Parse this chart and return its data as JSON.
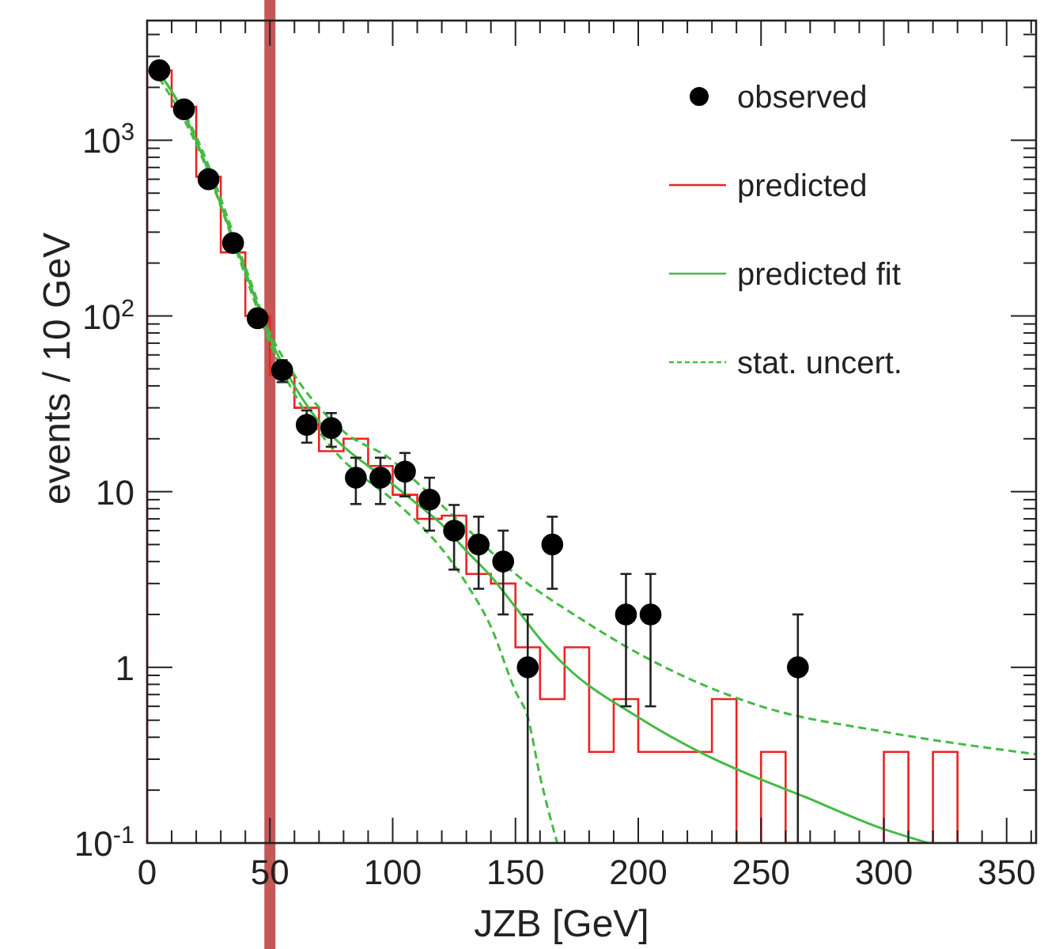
{
  "chart_data": {
    "type": "scatter",
    "xlabel": "JZB [GeV]",
    "ylabel": "events / 10 GeV",
    "xlim": [
      0,
      362
    ],
    "ylim": [
      0.1,
      4800
    ],
    "log": true,
    "grid": false,
    "legend": "top right",
    "xticks": [
      0,
      {
        "value": 10,
        "label": null
      },
      {
        "value": 20,
        "label": null
      },
      {
        "value": 30,
        "label": null
      },
      {
        "value": 40,
        "label": null
      },
      50,
      {
        "value": 60,
        "label": null
      },
      {
        "value": 70,
        "label": null
      },
      {
        "value": 80,
        "label": null
      },
      {
        "value": 90,
        "label": null
      },
      100,
      {
        "value": 110,
        "label": null
      },
      {
        "value": 120,
        "label": null
      },
      {
        "value": 130,
        "label": null
      },
      {
        "value": 140,
        "label": null
      },
      150,
      {
        "value": 160,
        "label": null
      },
      {
        "value": 170,
        "label": null
      },
      {
        "value": 180,
        "label": null
      },
      {
        "value": 190,
        "label": null
      },
      200,
      {
        "value": 210,
        "label": null
      },
      {
        "value": 220,
        "label": null
      },
      {
        "value": 230,
        "label": null
      },
      {
        "value": 240,
        "label": null
      },
      250,
      {
        "value": 260,
        "label": null
      },
      {
        "value": 270,
        "label": null
      },
      {
        "value": 280,
        "label": null
      },
      {
        "value": 290,
        "label": null
      },
      300,
      {
        "value": 310,
        "label": null
      },
      {
        "value": 320,
        "label": null
      },
      {
        "value": 330,
        "label": null
      },
      {
        "value": 340,
        "label": null
      },
      350,
      {
        "value": 360,
        "label": null
      }
    ],
    "yticks": [
      {
        "value": 0.1,
        "label": "10$^{-1}$"
      },
      {
        "value": 0.2,
        "label": null
      },
      {
        "value": 0.3,
        "label": null
      },
      {
        "value": 0.4,
        "label": null
      },
      {
        "value": 0.5,
        "label": null
      },
      {
        "value": 0.6,
        "label": null
      },
      {
        "value": 0.7,
        "label": null
      },
      {
        "value": 0.8,
        "label": null
      },
      {
        "value": 0.9,
        "label": null
      },
      1,
      {
        "value": 2,
        "label": null
      },
      {
        "value": 3,
        "label": null
      },
      {
        "value": 4,
        "label": null
      },
      {
        "value": 5,
        "label": null
      },
      {
        "value": 6,
        "label": null
      },
      {
        "value": 7,
        "label": null
      },
      {
        "value": 8,
        "label": null
      },
      {
        "value": 9,
        "label": null
      },
      10,
      {
        "value": 20,
        "label": null
      },
      {
        "value": 30,
        "label": null
      },
      {
        "value": 40,
        "label": null
      },
      {
        "value": 50,
        "label": null
      },
      {
        "value": 60,
        "label": null
      },
      {
        "value": 70,
        "label": null
      },
      {
        "value": 80,
        "label": null
      },
      {
        "value": 90,
        "label": null
      },
      {
        "value": 100,
        "label": "10$^{2}$"
      },
      {
        "value": 200,
        "label": null
      },
      {
        "value": 300,
        "label": null
      },
      {
        "value": 400,
        "label": null
      },
      {
        "value": 500,
        "label": null
      },
      {
        "value": 600,
        "label": null
      },
      {
        "value": 700,
        "label": null
      },
      {
        "value": 800,
        "label": null
      },
      {
        "value": 900,
        "label": null
      },
      {
        "value": 1000,
        "label": "10$^{3}$"
      },
      {
        "value": 2000,
        "label": null
      },
      {
        "value": 3000,
        "label": null
      },
      {
        "value": 4000,
        "label": null
      }
    ],
    "ref_lines": [
      {
        "axis": "x",
        "value": 50,
        "color": "#c0504d"
      }
    ],
    "series": [
      {
        "name": "observed",
        "type": "scatter",
        "color": "#000000",
        "marker": "circle",
        "x": [
          5,
          15,
          25,
          35,
          45,
          55,
          65,
          75,
          85,
          95,
          105,
          115,
          125,
          135,
          145,
          155,
          165,
          195,
          205,
          265
        ],
        "values": [
          2500,
          1500,
          600,
          260,
          97,
          49,
          24,
          23,
          12,
          12,
          13,
          9,
          6,
          5,
          4,
          1,
          5,
          2,
          2,
          1
        ],
        "errors": [
          null,
          null,
          null,
          null,
          null,
          [
            42,
            56
          ],
          [
            19,
            29
          ],
          [
            18,
            28
          ],
          [
            8.5,
            15.6
          ],
          [
            8.5,
            15.6
          ],
          [
            9.4,
            16.6
          ],
          [
            6,
            12
          ],
          [
            3.6,
            8.4
          ],
          [
            2.8,
            7.2
          ],
          [
            2,
            6
          ],
          [
            0.1,
            2
          ],
          [
            2.8,
            7.2
          ],
          [
            0.6,
            3.4
          ],
          [
            0.6,
            3.4
          ],
          [
            0.1,
            2
          ]
        ]
      },
      {
        "name": "predicted",
        "type": "histogram",
        "color": "#ee2222",
        "bins": [
          0,
          10,
          20,
          30,
          40,
          50,
          60,
          70,
          80,
          90,
          100,
          110,
          120,
          130,
          140,
          150,
          160,
          170,
          180,
          190,
          200,
          210,
          220,
          230,
          240,
          250,
          260,
          270,
          280,
          290,
          300,
          310,
          320,
          330
        ],
        "values": [
          2500,
          1550,
          620,
          230,
          100,
          46,
          30,
          17,
          20,
          14,
          9.6,
          7,
          7.3,
          3.4,
          3,
          1.3,
          0.66,
          1.3,
          0.33,
          0.66,
          0.33,
          0.33,
          0.33,
          0.66,
          null,
          0.33,
          null,
          null,
          null,
          null,
          0.33,
          null,
          0.33
        ]
      },
      {
        "name": "predicted fit",
        "type": "line",
        "color": "#44bb44",
        "line_style": "solid",
        "x": [
          2,
          10,
          20,
          30,
          40,
          50,
          60,
          70,
          80,
          90,
          100,
          110,
          120,
          130,
          140,
          150,
          160,
          170,
          200,
          225,
          250,
          265,
          300,
          318
        ],
        "values": [
          2700,
          1900,
          1000,
          430,
          180,
          75,
          40,
          25,
          18,
          14,
          11,
          8.5,
          6.5,
          4.6,
          3.3,
          2.2,
          1.45,
          1.03,
          0.52,
          0.33,
          0.23,
          0.19,
          0.12,
          0.1
        ]
      },
      {
        "name": "stat. uncert.",
        "type": "line",
        "color": "#44bb44",
        "line_style": "dashed",
        "x": [
          2,
          20,
          40,
          50,
          60,
          80,
          100,
          105,
          130,
          150,
          175,
          200,
          250,
          300,
          362
        ],
        "values": [
          2800,
          1050,
          190,
          80,
          46,
          22,
          15,
          13,
          6.2,
          3.4,
          1.95,
          1.2,
          0.6,
          0.43,
          0.32
        ]
      },
      {
        "type": "line",
        "color": "#44bb44",
        "line_style": "dashed",
        "x": [
          2,
          20,
          40,
          50,
          60,
          70,
          80,
          90,
          100,
          130,
          140,
          150,
          155,
          160,
          167
        ],
        "values": [
          2600,
          950,
          170,
          70,
          36,
          22,
          15,
          11.5,
          9,
          3,
          1.7,
          0.73,
          0.52,
          0.24,
          0.1
        ]
      }
    ]
  }
}
